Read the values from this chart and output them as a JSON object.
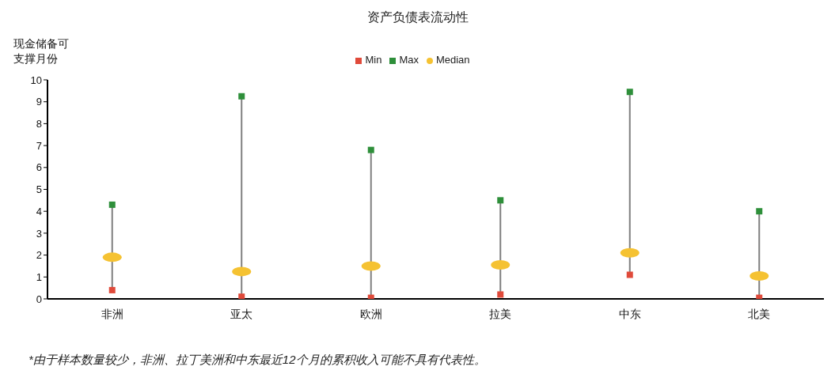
{
  "chart_data": {
    "type": "scatter",
    "title": "资产负债表流动性",
    "ylabel": "现金储备可支撑月份",
    "categories": [
      "非洲",
      "亚太",
      "欧洲",
      "拉美",
      "中东",
      "北美"
    ],
    "series": [
      {
        "name": "Min",
        "color": "#e04a3a",
        "marker": "square",
        "values": [
          0.4,
          0.1,
          0.05,
          0.2,
          1.1,
          0.05
        ]
      },
      {
        "name": "Max",
        "color": "#2e8f3a",
        "marker": "square",
        "values": [
          4.3,
          9.25,
          6.8,
          4.5,
          9.45,
          4.0
        ]
      },
      {
        "name": "Median",
        "color": "#f5c232",
        "marker": "circle",
        "values": [
          1.9,
          1.25,
          1.5,
          1.55,
          2.1,
          1.05
        ]
      }
    ],
    "ylim": [
      0,
      10
    ],
    "yticks": [
      0,
      1,
      2,
      3,
      4,
      5,
      6,
      7,
      8,
      9,
      10
    ],
    "legend": "top",
    "annotations": [
      "*由于样本数量较少，非洲、拉丁美洲和中东最近12个月的累积收入可能不具有代表性。"
    ]
  }
}
